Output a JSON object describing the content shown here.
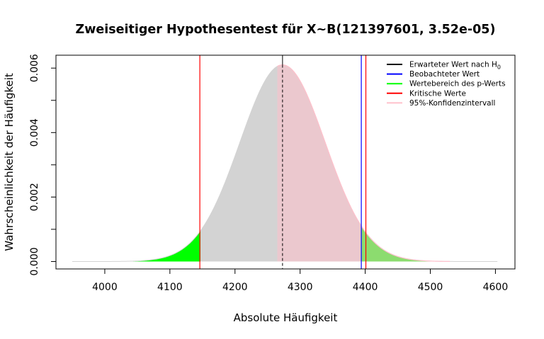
{
  "chart_data": {
    "type": "area",
    "title": "Zweiseitiger Hypothesentest für X~B(121397601, 3.52e-05)",
    "xlabel": "Absolute Häufigkeit",
    "ylabel": "Wahrscheinlichkeit der Häufigkeit",
    "xlim": [
      3925,
      4630
    ],
    "ylim": [
      -0.00023,
      0.0064
    ],
    "x_ticks": [
      4000,
      4100,
      4200,
      4300,
      4400,
      4500,
      4600
    ],
    "x_tick_labels": [
      "4000",
      "4100",
      "4200",
      "4300",
      "4400",
      "4500",
      "4600"
    ],
    "y_ticks": [
      0,
      0.001,
      0.002,
      0.003,
      0.004,
      0.005,
      0.006
    ],
    "y_tick_labels": [
      "0.000",
      "",
      "0.002",
      "",
      "0.004",
      "",
      "0.006"
    ],
    "distribution": {
      "n": 121397601,
      "p": 3.52e-05,
      "mean": 4273,
      "sd": 65.4,
      "x_range": [
        3950,
        4603
      ]
    },
    "regions": {
      "p_value_lower_end": 4147,
      "p_value_upper_start": 4394,
      "confidence_interval": [
        4265,
        4530
      ]
    },
    "lines": {
      "expected": 4273,
      "observed": 4394,
      "critical_lower": 4146,
      "critical_upper": 4401
    },
    "legend": {
      "position": "top-right",
      "entries": [
        {
          "label": "Erwarteter Wert nach H",
          "sub": "0",
          "color": "#000000"
        },
        {
          "label": "Beobachteter Wert",
          "sub": "",
          "color": "#0000ff"
        },
        {
          "label": "Wertebereich des p-Werts",
          "sub": "",
          "color": "#00ff00"
        },
        {
          "label": "Kritische Werte",
          "sub": "",
          "color": "#ff0000"
        },
        {
          "label": "95%-Konfidenzintervall",
          "sub": "",
          "color": "#ffc0cb"
        }
      ]
    },
    "colors": {
      "body": "#d3d3d3",
      "p_value": "#00ff00",
      "confidence": "#ffc0cb",
      "expected": "#000000",
      "observed": "#0000ff",
      "critical": "#ff0000"
    }
  }
}
